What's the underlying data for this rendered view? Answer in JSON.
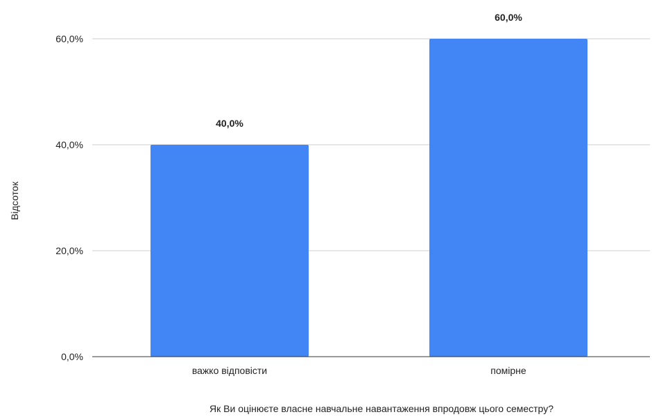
{
  "chart_data": {
    "type": "bar",
    "title": "",
    "xlabel": "Як Ви оцінюєте власне навчальне навантаження впродовж цього семестру?",
    "ylabel": "Відсоток",
    "categories": [
      "важко відповісти",
      "помірне"
    ],
    "series": [
      {
        "values": [
          40.0,
          60.0
        ],
        "data_labels": [
          "40,0%",
          "60,0%"
        ]
      }
    ],
    "ylim": [
      0,
      60
    ],
    "yticks": [
      0,
      20,
      40,
      60
    ],
    "ytick_labels": [
      "0,0%",
      "20,0%",
      "40,0%",
      "60,0%"
    ],
    "grid": true,
    "legend": "none",
    "colors": {
      "bar": "#4285f4",
      "grid": "#cccccc",
      "axis": "#333333",
      "text": "#222222"
    }
  }
}
